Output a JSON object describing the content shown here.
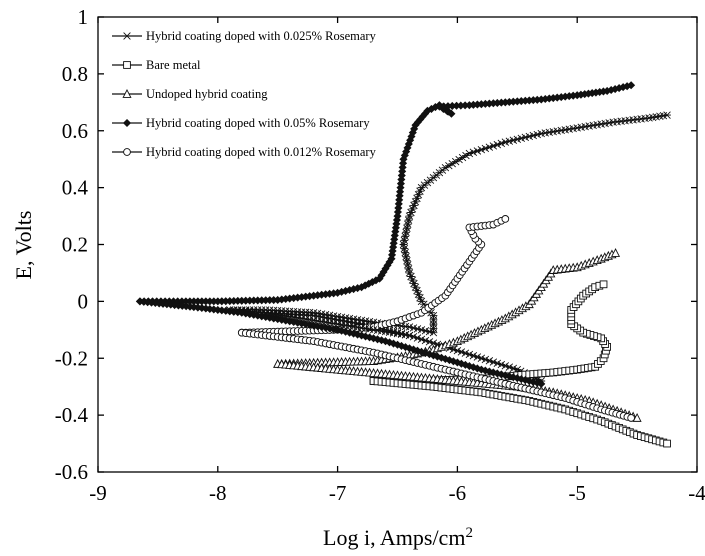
{
  "chart_data": {
    "type": "line",
    "title": "",
    "xlabel": "Log i, Amps/cm",
    "xlabel_sup": "2",
    "ylabel": "E, Volts",
    "xlim": [
      -9,
      -4
    ],
    "ylim": [
      -0.6,
      1
    ],
    "xticks": [
      "-9",
      "-8",
      "-7",
      "-6",
      "-5",
      "-4"
    ],
    "yticks": [
      "-0.6",
      "-0.4",
      "-0.2",
      "0",
      "0.2",
      "0.4",
      "0.6",
      "0.8",
      "1"
    ],
    "grid": false,
    "legend_position": "top-left",
    "series": [
      {
        "name": "Hybrid coating doped with 0.025% Rosemary",
        "marker": "star",
        "points": [
          [
            -5.3,
            -0.28
          ],
          [
            -5.5,
            -0.24
          ],
          [
            -5.8,
            -0.2
          ],
          [
            -6.1,
            -0.16
          ],
          [
            -6.4,
            -0.12
          ],
          [
            -6.8,
            -0.08
          ],
          [
            -7.2,
            -0.05
          ],
          [
            -7.6,
            -0.04
          ],
          [
            -7.9,
            -0.03
          ],
          [
            -7.6,
            -0.03
          ],
          [
            -7.2,
            -0.04
          ],
          [
            -6.9,
            -0.06
          ],
          [
            -6.6,
            -0.08
          ],
          [
            -6.4,
            -0.09
          ],
          [
            -6.2,
            -0.11
          ],
          [
            -6.2,
            -0.05
          ],
          [
            -6.3,
            0.0
          ],
          [
            -6.4,
            0.1
          ],
          [
            -6.45,
            0.2
          ],
          [
            -6.4,
            0.3
          ],
          [
            -6.3,
            0.4
          ],
          [
            -6.1,
            0.47
          ],
          [
            -5.9,
            0.52
          ],
          [
            -5.6,
            0.56
          ],
          [
            -5.3,
            0.59
          ],
          [
            -5.0,
            0.61
          ],
          [
            -4.7,
            0.63
          ],
          [
            -4.4,
            0.645
          ],
          [
            -4.25,
            0.655
          ]
        ]
      },
      {
        "name": "Bare metal",
        "marker": "square",
        "points": [
          [
            -6.7,
            -0.28
          ],
          [
            -6.3,
            -0.28
          ],
          [
            -6.0,
            -0.275
          ],
          [
            -5.7,
            -0.27
          ],
          [
            -5.5,
            -0.26
          ],
          [
            -5.2,
            -0.25
          ],
          [
            -5.0,
            -0.24
          ],
          [
            -4.85,
            -0.23
          ],
          [
            -4.78,
            -0.2
          ],
          [
            -4.75,
            -0.16
          ],
          [
            -4.8,
            -0.13
          ],
          [
            -4.95,
            -0.11
          ],
          [
            -5.05,
            -0.08
          ],
          [
            -5.05,
            -0.03
          ],
          [
            -4.95,
            0.02
          ],
          [
            -4.85,
            0.05
          ],
          [
            -4.78,
            0.06
          ]
        ]
      },
      {
        "name": "Undoped hybrid coating",
        "marker": "triangle",
        "points": [
          [
            -7.5,
            -0.22
          ],
          [
            -7.1,
            -0.215
          ],
          [
            -6.7,
            -0.21
          ],
          [
            -6.4,
            -0.19
          ],
          [
            -6.2,
            -0.17
          ],
          [
            -6.0,
            -0.14
          ],
          [
            -5.8,
            -0.1
          ],
          [
            -5.6,
            -0.06
          ],
          [
            -5.4,
            -0.01
          ],
          [
            -5.3,
            0.05
          ],
          [
            -5.2,
            0.11
          ],
          [
            -5.0,
            0.12
          ],
          [
            -4.8,
            0.15
          ],
          [
            -4.68,
            0.17
          ]
        ]
      },
      {
        "name": "Hybrid coating doped with 0.05% Rosemary",
        "marker": "diamond",
        "points": [
          [
            -8.65,
            0.0
          ],
          [
            -8.3,
            0.0
          ],
          [
            -8.0,
            0.0
          ],
          [
            -7.5,
            0.005
          ],
          [
            -7.2,
            0.02
          ],
          [
            -7.0,
            0.03
          ],
          [
            -6.8,
            0.05
          ],
          [
            -6.65,
            0.08
          ],
          [
            -6.55,
            0.15
          ],
          [
            -6.5,
            0.3
          ],
          [
            -6.45,
            0.5
          ],
          [
            -6.35,
            0.62
          ],
          [
            -6.25,
            0.67
          ],
          [
            -6.15,
            0.69
          ],
          [
            -6.05,
            0.66
          ],
          [
            -6.15,
            0.685
          ],
          [
            -5.9,
            0.69
          ],
          [
            -5.6,
            0.7
          ],
          [
            -5.3,
            0.71
          ],
          [
            -5.0,
            0.725
          ],
          [
            -4.75,
            0.74
          ],
          [
            -4.55,
            0.76
          ]
        ]
      },
      {
        "name": "Hybrid coating doped with 0.012% Rosemary",
        "marker": "circle",
        "points": [
          [
            -7.8,
            -0.11
          ],
          [
            -7.4,
            -0.105
          ],
          [
            -7.0,
            -0.1
          ],
          [
            -6.7,
            -0.09
          ],
          [
            -6.5,
            -0.07
          ],
          [
            -6.3,
            -0.04
          ],
          [
            -6.1,
            0.02
          ],
          [
            -5.9,
            0.14
          ],
          [
            -5.8,
            0.2
          ],
          [
            -5.85,
            0.22
          ],
          [
            -5.9,
            0.26
          ],
          [
            -5.7,
            0.27
          ],
          [
            -5.6,
            0.29
          ]
        ]
      },
      {
        "name": "Undoped hybrid coating",
        "marker": "triangle",
        "legend": false,
        "points": [
          [
            -7.5,
            -0.22
          ],
          [
            -7.0,
            -0.24
          ],
          [
            -6.5,
            -0.26
          ],
          [
            -6.0,
            -0.28
          ],
          [
            -5.5,
            -0.3
          ],
          [
            -5.2,
            -0.32
          ],
          [
            -4.9,
            -0.35
          ],
          [
            -4.7,
            -0.38
          ],
          [
            -4.5,
            -0.41
          ]
        ]
      },
      {
        "name": "Hybrid coating doped with 0.05% Rosemary",
        "marker": "diamond",
        "legend": false,
        "points": [
          [
            -8.65,
            0.0
          ],
          [
            -8.2,
            -0.02
          ],
          [
            -7.8,
            -0.04
          ],
          [
            -7.4,
            -0.07
          ],
          [
            -7.0,
            -0.1
          ],
          [
            -6.6,
            -0.14
          ],
          [
            -6.2,
            -0.19
          ],
          [
            -5.8,
            -0.24
          ],
          [
            -5.5,
            -0.27
          ],
          [
            -5.3,
            -0.29
          ]
        ]
      },
      {
        "name": "Hybrid coating doped with 0.012% Rosemary",
        "marker": "circle",
        "legend": false,
        "points": [
          [
            -7.8,
            -0.11
          ],
          [
            -7.2,
            -0.14
          ],
          [
            -6.7,
            -0.18
          ],
          [
            -6.3,
            -0.22
          ],
          [
            -5.9,
            -0.26
          ],
          [
            -5.5,
            -0.3
          ],
          [
            -5.1,
            -0.34
          ],
          [
            -4.8,
            -0.38
          ],
          [
            -4.55,
            -0.41
          ]
        ]
      },
      {
        "name": "Bare metal",
        "marker": "square",
        "legend": false,
        "points": [
          [
            -6.7,
            -0.28
          ],
          [
            -6.2,
            -0.3
          ],
          [
            -5.8,
            -0.32
          ],
          [
            -5.4,
            -0.35
          ],
          [
            -5.1,
            -0.38
          ],
          [
            -4.8,
            -0.42
          ],
          [
            -4.5,
            -0.47
          ],
          [
            -4.25,
            -0.5
          ]
        ]
      },
      {
        "name": "Hybrid coating doped with 0.025% Rosemary",
        "marker": "star",
        "legend": false,
        "points": [
          [
            -7.9,
            -0.03
          ],
          [
            -7.6,
            -0.04
          ],
          [
            -7.3,
            -0.06
          ],
          [
            -7.0,
            -0.08
          ],
          [
            -6.7,
            -0.1
          ],
          [
            -6.4,
            -0.12
          ]
        ]
      }
    ]
  }
}
